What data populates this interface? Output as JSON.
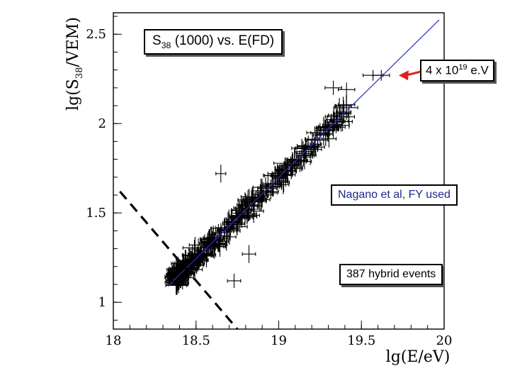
{
  "chart_data": {
    "type": "scatter",
    "title": "S38 (1000)  vs. E(FD)",
    "title_parts": {
      "s": "S",
      "sub": "38",
      "rest": " (1000)  vs. E(FD)"
    },
    "xlabel": "lg(E/eV)",
    "ylabel": "lg(S38/VEM)",
    "xlim": [
      18.0,
      20.0
    ],
    "ylim": [
      0.85,
      2.62
    ],
    "x_ticks": [
      18,
      18.5,
      19,
      19.5,
      20
    ],
    "x_tick_labels": [
      "18",
      "18.5",
      "19",
      "19.5",
      "20"
    ],
    "y_ticks": [
      1,
      1.5,
      2,
      2.5
    ],
    "y_tick_labels": [
      "1",
      "1.5",
      "2",
      "2.5"
    ],
    "fit_line": {
      "label": "Nagano et al,  FY used",
      "x": [
        18.33,
        19.97
      ],
      "y": [
        1.09,
        2.58
      ],
      "color": "#2230c8"
    },
    "cut_line": {
      "x": [
        18.04,
        18.75
      ],
      "y": [
        1.62,
        0.85
      ],
      "style": "dashed",
      "color": "#000000"
    },
    "annotations": [
      {
        "text_main": "4 x 10",
        "text_sup": "19",
        "text_end": " e.V",
        "arrow_to": {
          "x": 19.7,
          "y": 2.27
        },
        "arrow_color": "#e0201e"
      },
      {
        "text": "387 hybrid events"
      }
    ],
    "n_events": 387,
    "highlight_points": [
      {
        "x": 19.62,
        "y": 2.27,
        "xerr": 0.05,
        "yerr": 0.03
      },
      {
        "x": 19.57,
        "y": 2.27,
        "xerr": 0.06,
        "yerr": 0.03
      },
      {
        "x": 19.33,
        "y": 2.2,
        "xerr": 0.05,
        "yerr": 0.04
      },
      {
        "x": 19.41,
        "y": 2.19,
        "xerr": 0.05,
        "yerr": 0.04
      },
      {
        "x": 19.39,
        "y": 2.1,
        "xerr": 0.05,
        "yerr": 0.05
      },
      {
        "x": 18.65,
        "y": 1.72,
        "xerr": 0.03,
        "yerr": 0.05
      },
      {
        "x": 18.82,
        "y": 1.27,
        "xerr": 0.04,
        "yerr": 0.05
      },
      {
        "x": 18.73,
        "y": 1.12,
        "xerr": 0.04,
        "yerr": 0.04
      }
    ]
  }
}
